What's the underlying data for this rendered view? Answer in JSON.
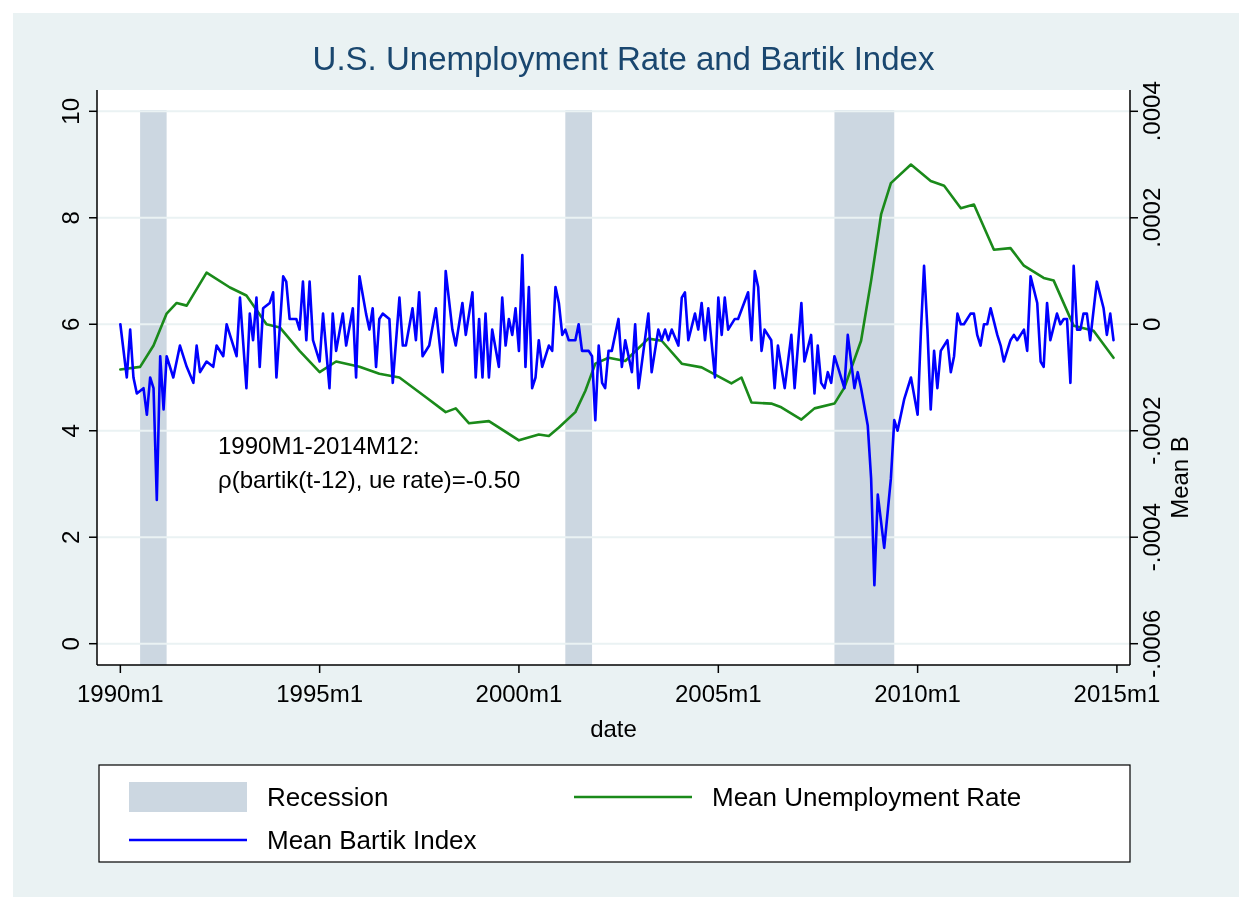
{
  "chart_data": {
    "type": "line",
    "title": "U.S. Unemployment Rate and Bartik Index",
    "xlabel": "date",
    "y2label": "Mean B",
    "xlim": [
      "1989-06",
      "2015-05"
    ],
    "xticks": [
      {
        "value": "1990-01",
        "label": "1990m1"
      },
      {
        "value": "1995-01",
        "label": "1995m1"
      },
      {
        "value": "2000-01",
        "label": "2000m1"
      },
      {
        "value": "2005-01",
        "label": "2005m1"
      },
      {
        "value": "2010-01",
        "label": "2010m1"
      },
      {
        "value": "2015-01",
        "label": "2015m1"
      }
    ],
    "ylim": [
      -0.4,
      10.4
    ],
    "yticks": [
      0,
      2,
      4,
      6,
      8,
      10
    ],
    "y2lim": [
      -0.00064,
      0.00044
    ],
    "y2ticks": [
      {
        "value": -0.0006,
        "label": "-.0006"
      },
      {
        "value": -0.0004,
        "label": "-.0004"
      },
      {
        "value": -0.0002,
        "label": "-.0002"
      },
      0,
      {
        "value": 0.0002,
        "label": ".0002"
      },
      {
        "value": 0.0004,
        "label": ".0004"
      }
    ],
    "grid": "y",
    "legend": "bottom",
    "bands": [
      {
        "axis": "x",
        "from": "1990-07",
        "to": "1991-03",
        "label": "Recession",
        "color": "#ccd7e1"
      },
      {
        "axis": "x",
        "from": "2001-03",
        "to": "2001-11",
        "color": "#ccd7e1"
      },
      {
        "axis": "x",
        "from": "2007-12",
        "to": "2009-06",
        "color": "#ccd7e1"
      }
    ],
    "annotations": [
      "1990M1-2014M12:",
      "ρ(bartik(t-12), ue rate)=-0.50"
    ],
    "series": [
      {
        "name": "Mean Unemployment Rate",
        "color": "#1a8a1a",
        "x": [
          "1990-01",
          "1990-07",
          "1990-11",
          "1991-03",
          "1991-06",
          "1991-09",
          "1992-03",
          "1992-10",
          "1993-03",
          "1993-09",
          "1994-01",
          "1994-07",
          "1995-01",
          "1995-06",
          "1996-01",
          "1996-07",
          "1997-01",
          "1997-09",
          "1998-03",
          "1998-06",
          "1998-10",
          "1999-04",
          "2000-01",
          "2000-07",
          "2000-10",
          "2001-01",
          "2001-06",
          "2001-09",
          "2001-12",
          "2002-04",
          "2002-09",
          "2003-04",
          "2003-08",
          "2004-02",
          "2004-08",
          "2005-05",
          "2005-08",
          "2005-11",
          "2006-05",
          "2006-08",
          "2007-02",
          "2007-06",
          "2007-12",
          "2008-03",
          "2008-08",
          "2008-11",
          "2009-02",
          "2009-05",
          "2009-11",
          "2010-05",
          "2010-09",
          "2011-02",
          "2011-06",
          "2011-12",
          "2012-05",
          "2012-09",
          "2013-03",
          "2013-06",
          "2013-12",
          "2014-06",
          "2014-12"
        ],
        "values": [
          5.15,
          5.2,
          5.6,
          6.2,
          6.4,
          6.35,
          6.97,
          6.69,
          6.54,
          6.0,
          5.94,
          5.5,
          5.1,
          5.3,
          5.2,
          5.07,
          5.0,
          4.63,
          4.35,
          4.42,
          4.14,
          4.18,
          3.82,
          3.93,
          3.9,
          4.06,
          4.35,
          4.75,
          5.26,
          5.37,
          5.31,
          5.73,
          5.69,
          5.26,
          5.19,
          4.89,
          5.0,
          4.53,
          4.51,
          4.44,
          4.21,
          4.42,
          4.51,
          4.81,
          5.69,
          6.82,
          8.07,
          8.65,
          9.0,
          8.69,
          8.6,
          8.18,
          8.25,
          7.4,
          7.43,
          7.1,
          6.87,
          6.82,
          5.97,
          5.88,
          5.37
        ]
      },
      {
        "name": "Mean Bartik Index",
        "color": "#0000ff",
        "axis": "y2",
        "x": [
          "1990-01",
          "1990-03",
          "1990-04",
          "1990-05",
          "1990-06",
          "1990-08",
          "1990-09",
          "1990-10",
          "1990-11",
          "1990-12",
          "1991-01",
          "1991-02",
          "1991-03",
          "1991-05",
          "1991-07",
          "1991-09",
          "1991-11",
          "1991-12",
          "1992-01",
          "1992-03",
          "1992-05",
          "1992-06",
          "1992-08",
          "1992-09",
          "1992-10",
          "1992-12",
          "1993-01",
          "1993-03",
          "1993-04",
          "1993-05",
          "1993-06",
          "1993-07",
          "1993-08",
          "1993-10",
          "1993-11",
          "1993-12",
          "1994-02",
          "1994-03",
          "1994-04",
          "1994-06",
          "1994-07",
          "1994-08",
          "1994-09",
          "1994-10",
          "1994-11",
          "1995-01",
          "1995-02",
          "1995-04",
          "1995-05",
          "1995-06",
          "1995-08",
          "1995-09",
          "1995-11",
          "1995-12",
          "1996-01",
          "1996-03",
          "1996-04",
          "1996-05",
          "1996-06",
          "1996-07",
          "1996-08",
          "1996-10",
          "1996-11",
          "1997-01",
          "1997-02",
          "1997-03",
          "1997-05",
          "1997-06",
          "1997-07",
          "1997-08",
          "1997-10",
          "1997-12",
          "1998-02",
          "1998-03",
          "1998-05",
          "1998-06",
          "1998-08",
          "1998-09",
          "1998-11",
          "1998-12",
          "1999-01",
          "1999-02",
          "1999-03",
          "1999-04",
          "1999-05",
          "1999-07",
          "1999-08",
          "1999-09",
          "1999-10",
          "1999-11",
          "1999-12",
          "2000-01",
          "2000-02",
          "2000-03",
          "2000-04",
          "2000-05",
          "2000-06",
          "2000-07",
          "2000-08",
          "2000-10",
          "2000-11",
          "2000-12",
          "2001-01",
          "2001-02",
          "2001-03",
          "2001-04",
          "2001-06",
          "2001-07",
          "2001-08",
          "2001-10",
          "2001-11",
          "2001-12",
          "2002-01",
          "2002-02",
          "2002-03",
          "2002-04",
          "2002-05",
          "2002-07",
          "2002-08",
          "2002-09",
          "2002-11",
          "2002-12",
          "2003-01",
          "2003-04",
          "2003-05",
          "2003-07",
          "2003-08",
          "2003-09",
          "2003-10",
          "2003-11",
          "2004-01",
          "2004-02",
          "2004-03",
          "2004-04",
          "2004-06",
          "2004-07",
          "2004-08",
          "2004-09",
          "2004-10",
          "2004-12",
          "2005-01",
          "2005-02",
          "2005-03",
          "2005-04",
          "2005-06",
          "2005-07",
          "2005-10",
          "2005-11",
          "2005-12",
          "2006-01",
          "2006-02",
          "2006-03",
          "2006-05",
          "2006-06",
          "2006-07",
          "2006-09",
          "2006-11",
          "2006-12",
          "2007-02",
          "2007-03",
          "2007-05",
          "2007-06",
          "2007-07",
          "2007-08",
          "2007-09",
          "2007-10",
          "2007-11",
          "2007-12",
          "2008-01",
          "2008-03",
          "2008-04",
          "2008-06",
          "2008-07",
          "2008-08",
          "2008-10",
          "2008-11",
          "2008-12",
          "2009-01",
          "2009-03",
          "2009-05",
          "2009-06",
          "2009-07",
          "2009-09",
          "2009-11",
          "2010-01",
          "2010-02",
          "2010-03",
          "2010-04",
          "2010-05",
          "2010-06",
          "2010-07",
          "2010-08",
          "2010-10",
          "2010-11",
          "2010-12",
          "2011-01",
          "2011-02",
          "2011-03",
          "2011-05",
          "2011-06",
          "2011-07",
          "2011-08",
          "2011-09",
          "2011-10",
          "2011-11",
          "2012-01",
          "2012-02",
          "2012-03",
          "2012-05",
          "2012-06",
          "2012-07",
          "2012-09",
          "2012-10",
          "2012-11",
          "2013-01",
          "2013-02",
          "2013-03",
          "2013-04",
          "2013-05",
          "2013-07",
          "2013-08",
          "2013-09",
          "2013-10",
          "2013-11",
          "2013-12",
          "2014-01",
          "2014-02",
          "2014-03",
          "2014-04",
          "2014-05",
          "2014-07",
          "2014-09",
          "2014-10",
          "2014-11",
          "2014-12"
        ],
        "values": [
          0,
          -0.0001,
          -1e-05,
          -0.0001,
          -0.00013,
          -0.00012,
          -0.00017,
          -0.0001,
          -0.00012,
          -0.00033,
          -6e-05,
          -0.00016,
          -6e-05,
          -0.0001,
          -4e-05,
          -8e-05,
          -0.00011,
          -4e-05,
          -9e-05,
          -7e-05,
          -8e-05,
          -4e-05,
          -6e-05,
          0,
          -2e-05,
          -6e-05,
          5e-05,
          -0.00012,
          2e-05,
          -3e-05,
          5e-05,
          -8e-05,
          3e-05,
          4e-05,
          6e-05,
          -0.0001,
          9e-05,
          8e-05,
          1e-05,
          1e-05,
          -1e-05,
          8e-05,
          -3e-05,
          8e-05,
          -3e-05,
          -7e-05,
          2e-05,
          -0.00012,
          2e-05,
          -5e-05,
          2e-05,
          -4e-05,
          3e-05,
          -0.0001,
          9e-05,
          2e-05,
          -1e-05,
          3e-05,
          -8e-05,
          1e-05,
          2e-05,
          1e-05,
          -0.00011,
          5e-05,
          -4e-05,
          -4e-05,
          3e-05,
          -3e-05,
          6e-05,
          -6e-05,
          -4e-05,
          3e-05,
          -9e-05,
          0.0001,
          -1e-05,
          -4e-05,
          4e-05,
          -2e-05,
          6e-05,
          -0.0001,
          1e-05,
          -0.0001,
          2e-05,
          -0.0001,
          -1e-05,
          -8e-05,
          5e-05,
          -4e-05,
          1e-05,
          -2e-05,
          3e-05,
          -5e-05,
          0.00013,
          -8e-05,
          7e-05,
          -0.00012,
          -0.0001,
          -3e-05,
          -8e-05,
          -4e-05,
          -5e-05,
          7e-05,
          4e-05,
          -2e-05,
          -1e-05,
          -3e-05,
          -3e-05,
          0,
          -5e-05,
          -5e-05,
          -6e-05,
          -0.00018,
          -4e-05,
          -0.00011,
          -0.00012,
          -5e-05,
          -5e-05,
          1e-05,
          -8e-05,
          -3e-05,
          -9e-05,
          0,
          -0.00012,
          2e-05,
          -9e-05,
          -1e-05,
          -3e-05,
          -1e-05,
          -3e-05,
          -1e-05,
          -4e-05,
          5e-05,
          6e-05,
          -3e-05,
          2e-05,
          -1e-05,
          4e-05,
          -3e-05,
          3e-05,
          -0.0001,
          5e-05,
          -2e-05,
          5e-05,
          -1e-05,
          1e-05,
          1e-05,
          6e-05,
          -3e-05,
          0.0001,
          7e-05,
          -5e-05,
          -1e-05,
          -3e-05,
          -0.00012,
          -4e-05,
          -0.00012,
          -2e-05,
          -0.00012,
          4e-05,
          -7e-05,
          -2e-05,
          -0.00013,
          -4e-05,
          -0.00011,
          -0.00012,
          -9e-05,
          -0.00011,
          -6e-05,
          -8e-05,
          -0.00012,
          -2e-05,
          -0.00012,
          -9e-05,
          -0.00012,
          -0.00019,
          -0.00029,
          -0.00049,
          -0.00032,
          -0.00042,
          -0.00029,
          -0.00018,
          -0.0002,
          -0.00014,
          -0.0001,
          -0.00017,
          -1e-05,
          0.00011,
          -1e-05,
          -0.00016,
          -5e-05,
          -0.00012,
          -5e-05,
          -3e-05,
          -9e-05,
          -6e-05,
          2e-05,
          0,
          0,
          2e-05,
          2e-05,
          -2e-05,
          -4e-05,
          0,
          0,
          3e-05,
          -2e-05,
          -4e-05,
          -7e-05,
          -3e-05,
          -2e-05,
          -3e-05,
          -1e-05,
          -5e-05,
          9e-05,
          4e-05,
          -7e-05,
          -8e-05,
          4e-05,
          -3e-05,
          2e-05,
          0,
          1e-05,
          1e-05,
          -0.00011,
          0.00011,
          -1e-05,
          -1e-05,
          2e-05,
          2e-05,
          -3e-05,
          8e-05,
          3e-05,
          -2e-05,
          2e-05,
          -3e-05
        ]
      }
    ]
  }
}
